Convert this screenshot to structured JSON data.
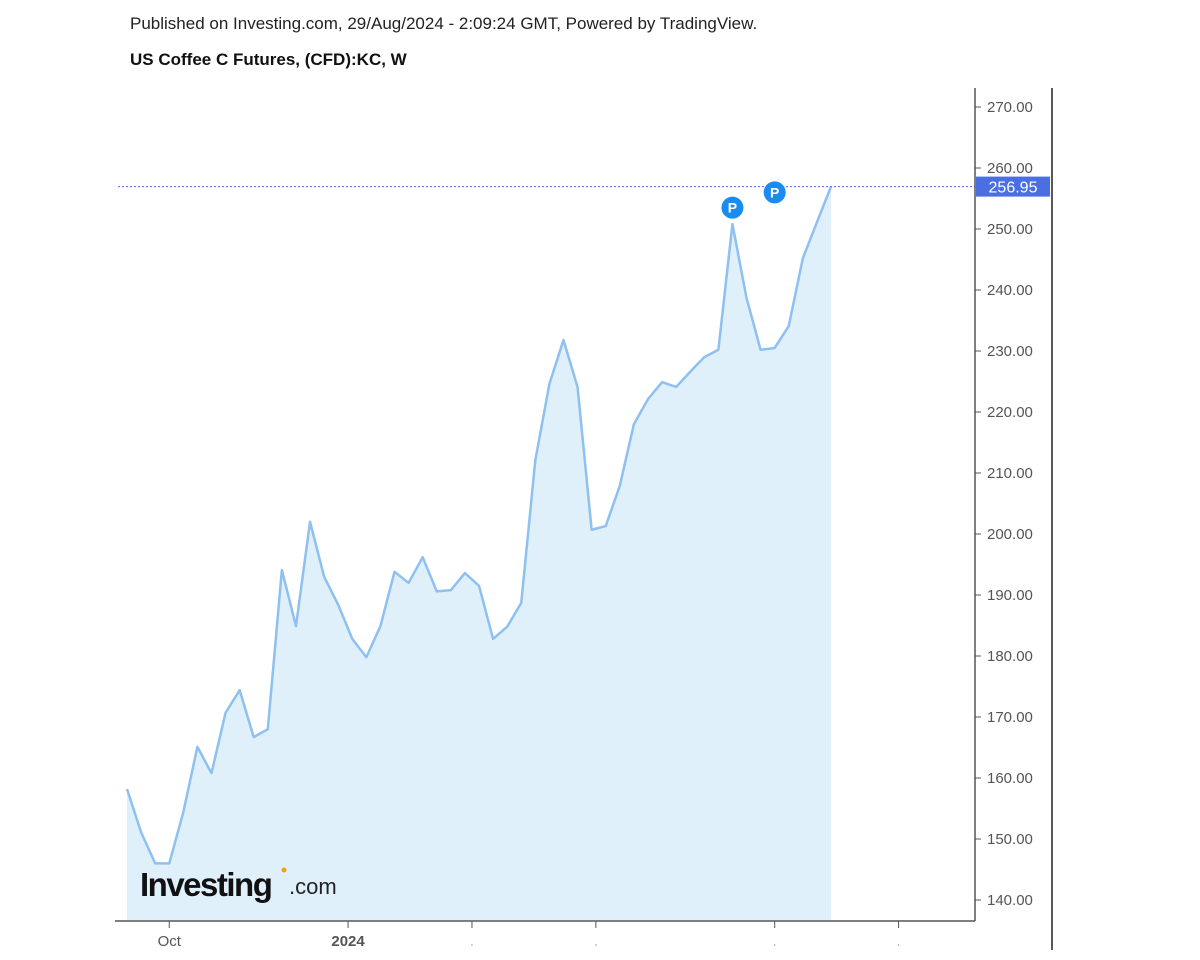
{
  "header": {
    "published": "Published on Investing.com, 29/Aug/2024 - 2:09:24 GMT, Powered by TradingView.",
    "title": "US Coffee C Futures, (CFD):KC, W"
  },
  "logo": {
    "text": "Investing",
    "suffix": ".com"
  },
  "colors": {
    "line": "#8ec0f0",
    "fill": "#e0f0fa",
    "price_label": "#4a6fe3",
    "marker": "#1a8cf0"
  },
  "chart_data": {
    "type": "area",
    "title": "US Coffee C Futures, (CFD):KC, W",
    "xlabel": "",
    "ylabel": "",
    "ylim": [
      136,
      272
    ],
    "y_ticks": [
      "140.00",
      "150.00",
      "160.00",
      "170.00",
      "180.00",
      "190.00",
      "200.00",
      "210.00",
      "220.00",
      "230.00",
      "240.00",
      "250.00",
      "260.00",
      "270.00"
    ],
    "x_tick_labels": [
      {
        "label": "Oct",
        "index": 3
      },
      {
        "label": "2024",
        "index": 15.7
      },
      {
        "label": "",
        "index": 24.5
      },
      {
        "label": "",
        "index": 33.3
      },
      {
        "label": "",
        "index": 46
      },
      {
        "label": "",
        "index": 54.8
      }
    ],
    "last_price": "256.95",
    "markers": [
      {
        "label": "P",
        "index": 43,
        "value": 253.5
      },
      {
        "label": "P",
        "index": 46,
        "value": 256
      }
    ],
    "values": [
      158.2,
      151.1,
      146,
      146,
      154.4,
      165.1,
      160.8,
      170.7,
      174.4,
      166.7,
      168,
      194.1,
      184.9,
      202,
      193,
      188.4,
      182.8,
      179.8,
      184.9,
      193.8,
      192,
      196.2,
      190.6,
      190.8,
      193.6,
      191.5,
      182.8,
      184.8,
      188.7,
      212.1,
      224.6,
      231.8,
      224.1,
      200.7,
      201.3,
      207.9,
      218,
      222.1,
      224.9,
      224.1,
      226.6,
      229,
      230.2,
      250.8,
      238.7,
      230.2,
      230.5,
      234.1,
      245.2,
      251.1,
      256.95
    ]
  }
}
